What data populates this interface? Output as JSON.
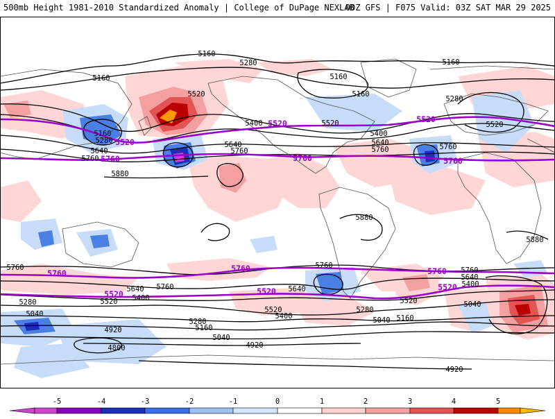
{
  "title": {
    "left": "500mb Height 1981-2010 Standardized Anomaly | College of DuPage NEXLAB",
    "right": "00Z GFS | F075 Valid: 03Z SAT MAR 29 2025"
  },
  "colors": {
    "purple_contour": "#9a00c8",
    "black_contour": "#000000",
    "coast": "#505050"
  },
  "height_labels": {
    "l5160_top": "5160",
    "l5280_top": "5280",
    "l5160_ne": "5160",
    "l5160_pac": "5160",
    "l5520_pac": "5520",
    "l5160_na": "5160",
    "l5160_na2": "5160",
    "l5280_atl": "5280",
    "l5520_eu": "5520",
    "l5160_ak": "5160",
    "l5280_ak": "5280",
    "l5640_w": "5640",
    "l5760_w": "5760",
    "l5400_us": "5400",
    "l5520_us": "5520",
    "l5640_us": "5640",
    "l5760_us": "5760",
    "l5400_atl": "5400",
    "l5640_atl": "5640",
    "l5760_atl": "5760",
    "l5760_eu": "5760",
    "l5880_w": "5880",
    "l5880_sa": "5880",
    "l5880_af": "5880",
    "l5760_sw": "5760",
    "l5640_sp": "5640",
    "l5760_sp": "5760",
    "l5640_sa": "5640",
    "l5760_sa": "5760",
    "l5760_se": "5760",
    "l5640_se": "5640",
    "l5400_se": "5400",
    "l5280_sw": "5280",
    "l5520_sw": "5520",
    "l5400_sp": "5400",
    "l5040_sw": "5040",
    "l5520_sa": "5520",
    "l5400_sa2": "5400",
    "l5280_sp": "5280",
    "l5160_sp": "5160",
    "l4920_sp": "4920",
    "l5040_sp": "5040",
    "l4800_sp": "4800",
    "l4920_sa": "4920",
    "l5280_sa": "5280",
    "l5040_sa": "5040",
    "l5160_sa": "5160",
    "l5520_so": "5520",
    "l5040_se": "5040",
    "l4920_bot": "4920"
  },
  "purple_labels": {
    "p5520_pac": "5520",
    "p5520_us": "5520",
    "p5520_eu": "5520",
    "p5760_pac": "5760",
    "p5760_atl": "5760",
    "p5760_eu": "5760",
    "p5760_sw": "5760",
    "p5760_sp": "5760",
    "p5760_se": "5760",
    "p5520_sw": "5520",
    "p5520_sa": "5520",
    "p5520_se": "5520"
  },
  "colorbar": {
    "ticks": [
      "-5",
      "-4",
      "-3",
      "-2",
      "-1",
      "0",
      "1",
      "2",
      "3",
      "4",
      "5"
    ],
    "colors": [
      "#cc44cc",
      "#8800bb",
      "#1a2fb5",
      "#3c6fe6",
      "#9ec0f3",
      "#d4e5fb",
      "#ffffff",
      "#ffd0d0",
      "#f4a0a0",
      "#e35555",
      "#bb0000",
      "#ff8800",
      "#ffbb00"
    ]
  }
}
